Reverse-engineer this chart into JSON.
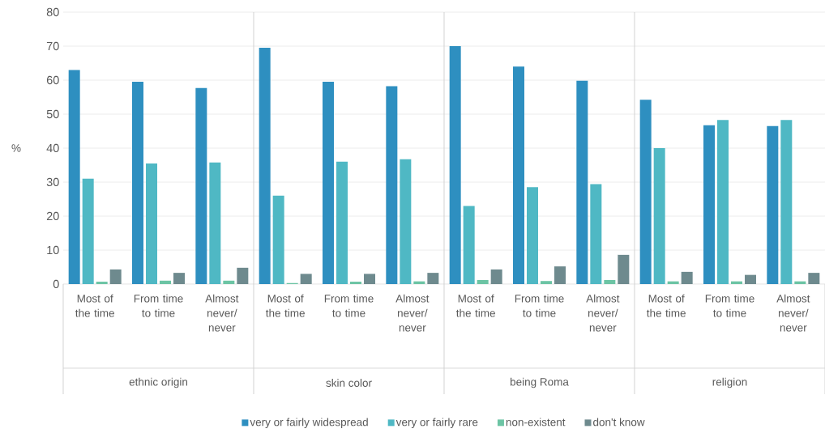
{
  "chart_data": {
    "type": "bar",
    "ylabel": "%",
    "categories": [
      "Most of the time",
      "From time to time",
      "Almost never/ never",
      "Most of the time",
      "From time to time",
      "Almost never/ never",
      "Most of the time",
      "From time to time",
      "Almost never/ never",
      "Most of the time",
      "From time to time",
      "Almost never/ never"
    ],
    "series": [
      {
        "name": "very or fairly widespread",
        "color": "#2e8fc0",
        "values": [
          63,
          59.5,
          57.7,
          69.5,
          59.5,
          58.2,
          70,
          64,
          59.8,
          54.2,
          46.7,
          46.5
        ]
      },
      {
        "name": "very or fairly rare",
        "color": "#4fb8c4",
        "values": [
          31,
          35.5,
          35.8,
          26,
          36,
          36.7,
          23,
          28.5,
          29.4,
          40,
          48.3,
          48.3
        ]
      },
      {
        "name": "non-existent",
        "color": "#6cc4a4",
        "values": [
          0.7,
          1,
          1,
          0.3,
          0.7,
          0.8,
          1.2,
          0.9,
          1.2,
          0.8,
          0.8,
          0.8
        ]
      },
      {
        "name": "don't know",
        "color": "#6e8a8e",
        "values": [
          4.3,
          3.3,
          4.8,
          3,
          3,
          3.3,
          4.3,
          5.2,
          8.6,
          3.6,
          2.7,
          3.3
        ]
      }
    ],
    "ylim": [
      0,
      80
    ],
    "yticks": [
      0,
      10,
      20,
      30,
      40,
      50,
      60,
      70,
      80
    ],
    "grid": "y",
    "legend": "bottom",
    "annotations": [
      "ethnic origin",
      "skin color",
      "being Roma",
      "religion"
    ]
  }
}
